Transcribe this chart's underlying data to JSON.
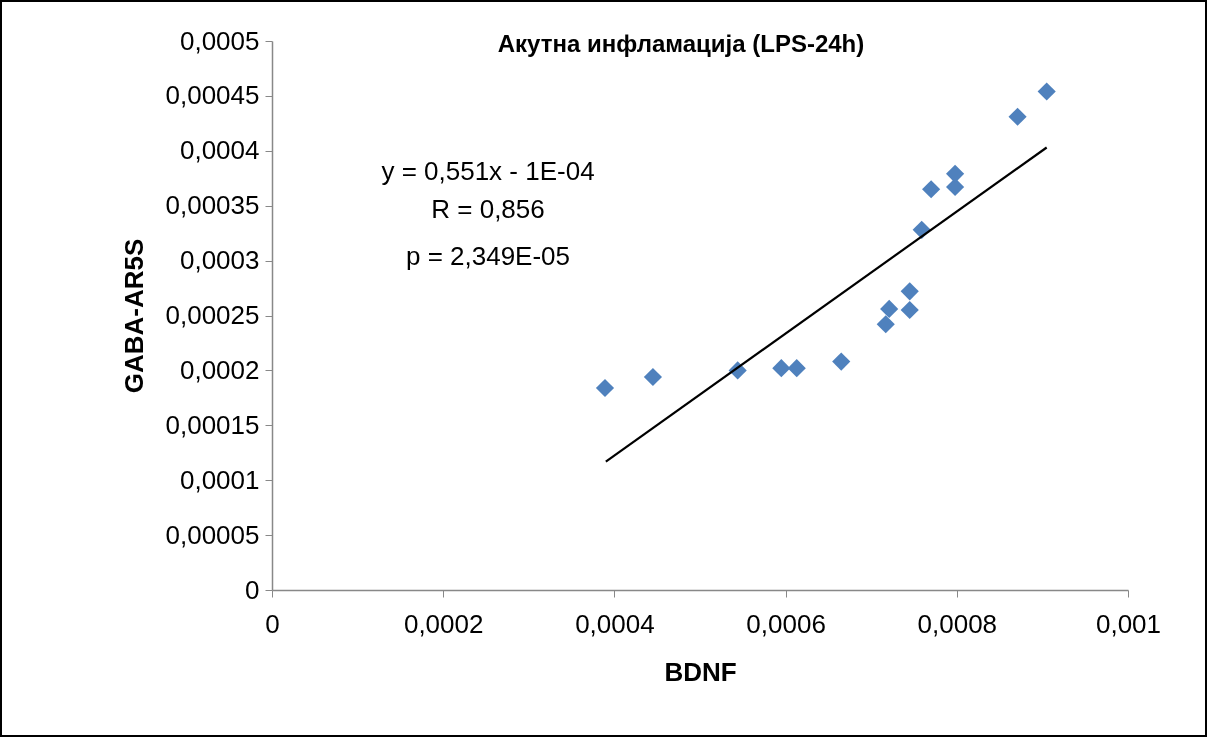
{
  "chart_data": {
    "type": "scatter",
    "title": "Акутна инфламација (LPS-24h)",
    "xlabel": "BDNF",
    "ylabel": "GABA-AR5S",
    "annotations": [
      "y = 0,551x - 1E-04",
      "R = 0,856",
      "p = 2,349E-05"
    ],
    "grid": false,
    "xlim": [
      0,
      0.001
    ],
    "xticks": [
      0,
      {
        "value": 0.0002,
        "label": "0,0002"
      },
      {
        "value": 0.0004,
        "label": "0,0004"
      },
      {
        "value": 0.0006,
        "label": "0,0006"
      },
      {
        "value": 0.0008,
        "label": "0,0008"
      },
      {
        "value": 0.001,
        "label": "0,001"
      }
    ],
    "ylim": [
      0,
      0.0005
    ],
    "yticks": [
      0,
      {
        "value": 5e-05,
        "label": "0,00005"
      },
      {
        "value": 0.0001,
        "label": "0,0001"
      },
      {
        "value": 0.00015,
        "label": "0,00015"
      },
      {
        "value": 0.0002,
        "label": "0,0002"
      },
      {
        "value": 0.00025,
        "label": "0,00025"
      },
      {
        "value": 0.0003,
        "label": "0,0003"
      },
      {
        "value": 0.00035,
        "label": "0,00035"
      },
      {
        "value": 0.0004,
        "label": "0,0004"
      },
      {
        "value": 0.00045,
        "label": "0,00045"
      },
      {
        "value": 0.0005,
        "label": "0,0005"
      }
    ],
    "series": [
      {
        "type": "scatter",
        "marker": "diamond",
        "color": "#4f81bd",
        "x": [
          0.000389,
          0.000445,
          0.000544,
          0.000595,
          0.000613,
          0.000665,
          0.000717,
          0.000721,
          0.000745,
          0.000745,
          0.000759,
          0.00077,
          0.000798,
          0.000798,
          0.000871,
          0.000905
        ],
        "values": [
          0.000184,
          0.000194,
          0.0002,
          0.000202,
          0.000202,
          0.000208,
          0.000242,
          0.000256,
          0.000255,
          0.000272,
          0.000328,
          0.000365,
          0.000367,
          0.000379,
          0.000431,
          0.000454
        ]
      },
      {
        "type": "line",
        "marker": "none",
        "color": "#000000",
        "x": [
          0.00039,
          0.000905
        ],
        "values": [
          0.000117,
          0.000403
        ]
      }
    ]
  }
}
